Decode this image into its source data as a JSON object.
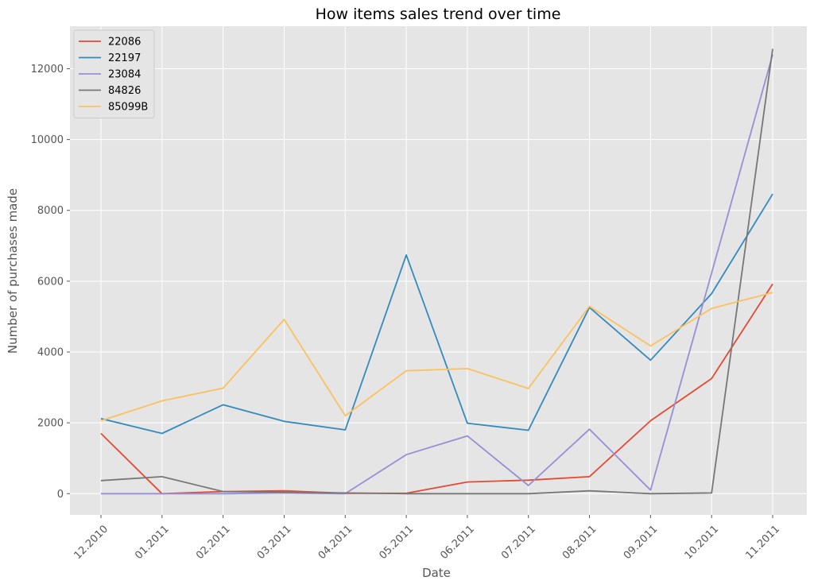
{
  "chart_data": {
    "type": "line",
    "title": "How items sales trend over time",
    "xlabel": "Date",
    "ylabel": "Number of purchases made",
    "categories": [
      "12.2010",
      "01.2011",
      "02.2011",
      "03.2011",
      "04.2011",
      "05.2011",
      "06.2011",
      "07.2011",
      "08.2011",
      "09.2011",
      "10.2011",
      "11.2011"
    ],
    "ylim": [
      -600,
      13200
    ],
    "yticks": [
      0,
      2000,
      4000,
      6000,
      8000,
      10000,
      12000
    ],
    "grid": true,
    "legend_position": "top-left",
    "series": [
      {
        "name": "22086",
        "color": "#E24A33",
        "values": [
          1700,
          0,
          60,
          80,
          10,
          10,
          330,
          380,
          480,
          2060,
          3250,
          5920
        ]
      },
      {
        "name": "22197",
        "color": "#348ABD",
        "values": [
          2120,
          1700,
          2510,
          2040,
          1800,
          6740,
          1990,
          1790,
          5260,
          3770,
          5650,
          8460
        ]
      },
      {
        "name": "23084",
        "color": "#988ED5",
        "values": [
          0,
          0,
          0,
          20,
          0,
          1100,
          1630,
          230,
          1820,
          100,
          6230,
          12400
        ]
      },
      {
        "name": "84826",
        "color": "#777777",
        "values": [
          370,
          480,
          60,
          40,
          20,
          0,
          0,
          0,
          80,
          0,
          20,
          12560
        ]
      },
      {
        "name": "85099B",
        "color": "#FBC15E",
        "values": [
          2060,
          2620,
          2980,
          4920,
          2200,
          3470,
          3530,
          2970,
          5290,
          4170,
          5230,
          5680
        ]
      }
    ]
  }
}
